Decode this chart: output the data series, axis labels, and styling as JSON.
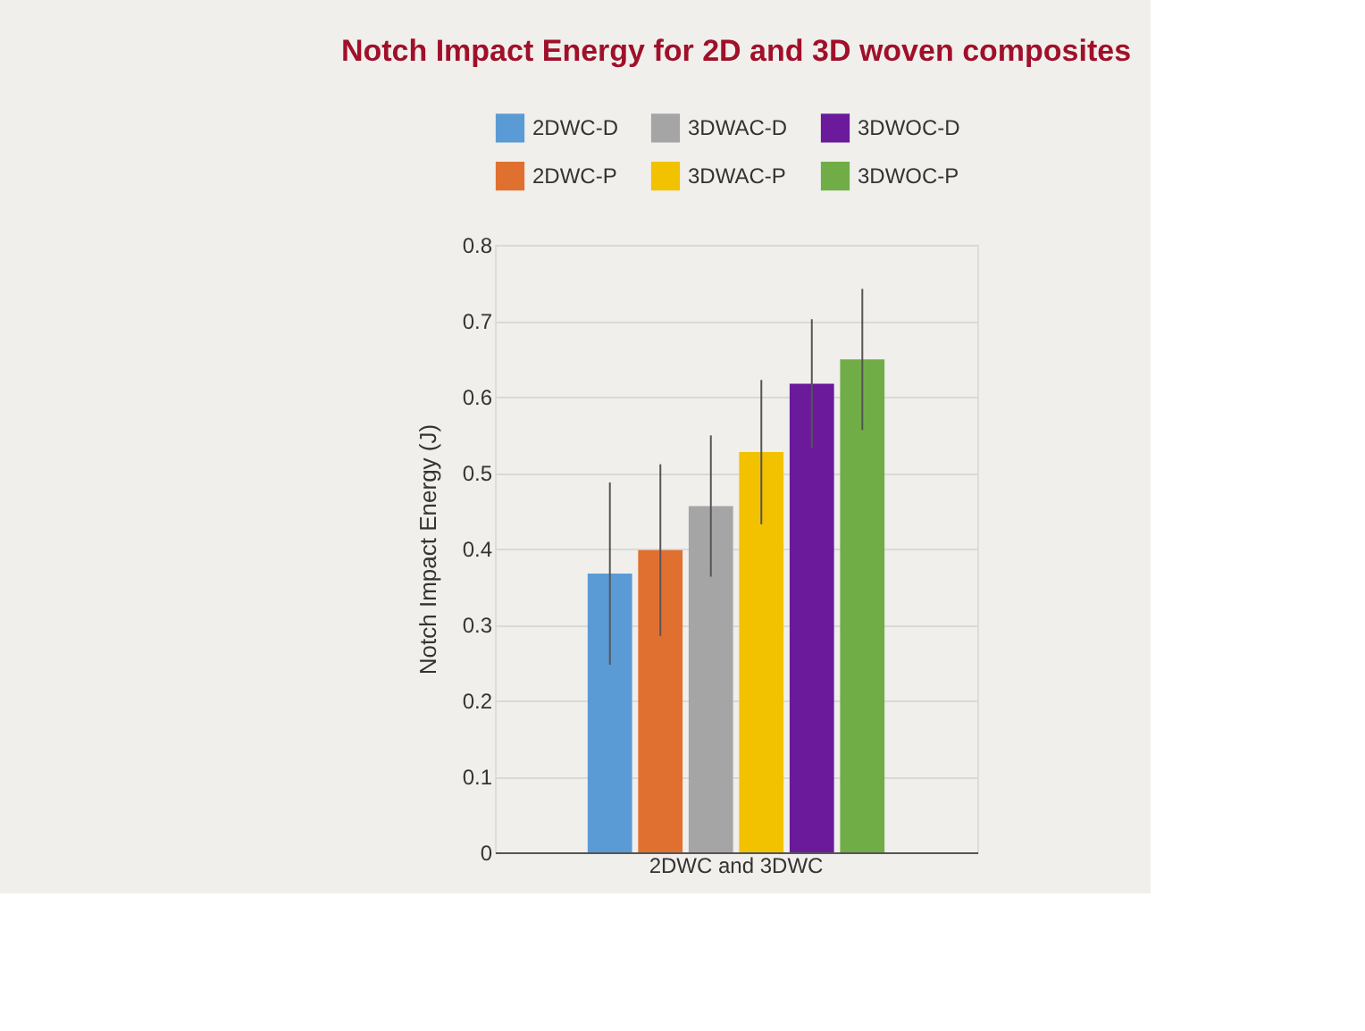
{
  "chart_data": {
    "type": "bar",
    "title": "Notch Impact Energy for 2D and 3D woven composites",
    "ylabel": "Notch Impact Energy (J)",
    "categories": [
      "2DWC and 3DWC"
    ],
    "series": [
      {
        "name": "2DWC-D",
        "color": "#5b9bd5",
        "values": [
          0.367
        ],
        "errors": [
          0.12
        ]
      },
      {
        "name": "2DWC-P",
        "color": "#e07030",
        "values": [
          0.398
        ],
        "errors": [
          0.113
        ]
      },
      {
        "name": "3DWAC-D",
        "color": "#a5a5a5",
        "values": [
          0.456
        ],
        "errors": [
          0.093
        ]
      },
      {
        "name": "3DWAC-P",
        "color": "#f2c100",
        "values": [
          0.527
        ],
        "errors": [
          0.095
        ]
      },
      {
        "name": "3DWOC-D",
        "color": "#6a1a9a",
        "values": [
          0.617
        ],
        "errors": [
          0.085
        ]
      },
      {
        "name": "3DWOC-P",
        "color": "#70ad47",
        "values": [
          0.649
        ],
        "errors": [
          0.093
        ]
      }
    ],
    "ylim": [
      0,
      0.8
    ],
    "yticks": [
      0,
      0.1,
      0.2,
      0.3,
      0.4,
      0.5,
      0.6,
      0.7,
      0.8
    ],
    "grid": "y",
    "legend": "top"
  }
}
